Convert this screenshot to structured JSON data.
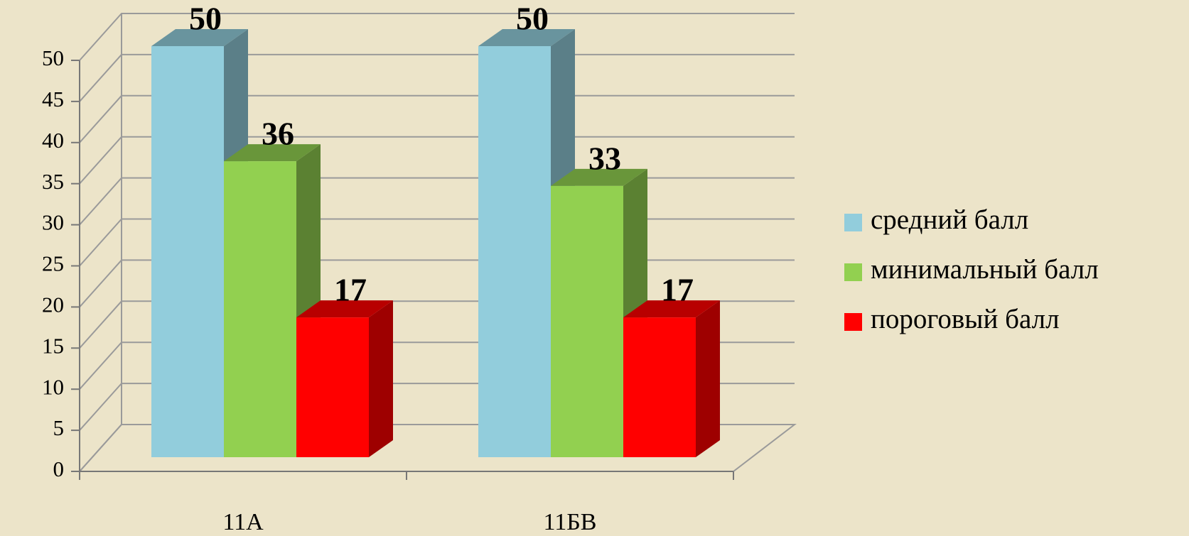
{
  "chart_data": {
    "type": "bar",
    "categories": [
      "11А",
      "11БВ"
    ],
    "series": [
      {
        "name": "средний балл",
        "color": "#92cddc",
        "values": [
          50,
          50
        ]
      },
      {
        "name": "минимальный балл",
        "color": "#92d050",
        "values": [
          36,
          33
        ]
      },
      {
        "name": "пороговый балл",
        "color": "#ff0000",
        "values": [
          17,
          17
        ]
      }
    ],
    "ylim": [
      0,
      50
    ],
    "yticks": [
      0,
      5,
      10,
      15,
      20,
      25,
      30,
      35,
      40,
      45,
      50
    ],
    "grid": true,
    "legend": "right"
  }
}
